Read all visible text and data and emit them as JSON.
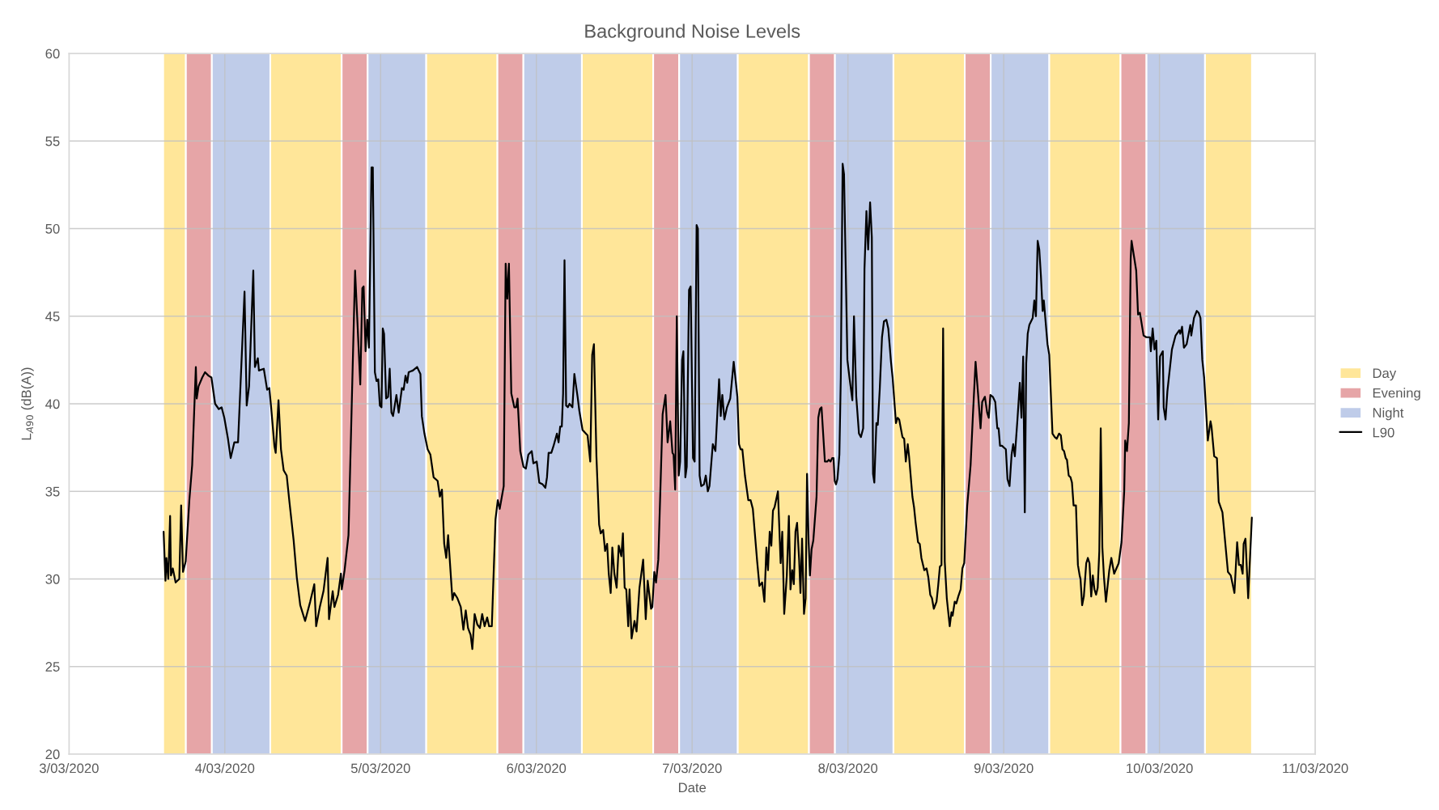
{
  "chart_data": {
    "type": "line",
    "title": "Background Noise Levels",
    "xlabel": "Date",
    "ylabel": "L$_{A90}$ (dB(A))",
    "xlim": [
      "2020-03-03",
      "2020-03-11"
    ],
    "xticks": [
      {
        "value": "2020-03-03",
        "label": "3/03/2020"
      },
      {
        "value": "2020-03-04",
        "label": "4/03/2020"
      },
      {
        "value": "2020-03-05",
        "label": "5/03/2020"
      },
      {
        "value": "2020-03-06",
        "label": "6/03/2020"
      },
      {
        "value": "2020-03-07",
        "label": "7/03/2020"
      },
      {
        "value": "2020-03-08",
        "label": "8/03/2020"
      },
      {
        "value": "2020-03-09",
        "label": "9/03/2020"
      },
      {
        "value": "2020-03-10",
        "label": "10/03/2020"
      },
      {
        "value": "2020-03-11",
        "label": "11/03/2020"
      }
    ],
    "ylim": [
      20,
      60
    ],
    "yticks": [
      20,
      25,
      30,
      35,
      40,
      45,
      50,
      55,
      60
    ],
    "grid": true,
    "legend": "right",
    "series": [
      {
        "name": "Day",
        "type": "area",
        "color": "#ffe699",
        "x": [
          "2020-03-03T14:30",
          "2020-03-03T18:00",
          "2020-03-03T18:00",
          "2020-03-04T07:00",
          "2020-03-04T07:00",
          "2020-03-04T18:00",
          "2020-03-04T18:00",
          "2020-03-05T07:00",
          "2020-03-05T07:00",
          "2020-03-05T18:00",
          "2020-03-05T18:00",
          "2020-03-06T07:00",
          "2020-03-06T07:00",
          "2020-03-06T18:00",
          "2020-03-06T18:00",
          "2020-03-07T07:00",
          "2020-03-07T07:00",
          "2020-03-07T18:00",
          "2020-03-07T18:00",
          "2020-03-08T07:00",
          "2020-03-08T07:00",
          "2020-03-08T18:00",
          "2020-03-08T18:00",
          "2020-03-09T07:00",
          "2020-03-09T07:00",
          "2020-03-09T18:00",
          "2020-03-09T18:00",
          "2020-03-10T07:00",
          "2020-03-10T07:00",
          "2020-03-10T14:15"
        ],
        "values": [
          60,
          60,
          20,
          20,
          60,
          60,
          20,
          20,
          60,
          60,
          20,
          20,
          60,
          60,
          20,
          20,
          60,
          60,
          20,
          20,
          60,
          60,
          20,
          20,
          60,
          60,
          20,
          20,
          60,
          60
        ]
      },
      {
        "name": "Evening",
        "type": "area",
        "color": "#e6a5a7",
        "x": [
          "2020-03-03T18:00",
          "2020-03-03T22:00",
          "2020-03-03T22:00",
          "2020-03-04T18:00",
          "2020-03-04T18:00",
          "2020-03-04T22:00",
          "2020-03-04T22:00",
          "2020-03-05T18:00",
          "2020-03-05T18:00",
          "2020-03-05T22:00",
          "2020-03-05T22:00",
          "2020-03-06T18:00",
          "2020-03-06T18:00",
          "2020-03-06T22:00",
          "2020-03-06T22:00",
          "2020-03-07T18:00",
          "2020-03-07T18:00",
          "2020-03-07T22:00",
          "2020-03-07T22:00",
          "2020-03-08T18:00",
          "2020-03-08T18:00",
          "2020-03-08T22:00",
          "2020-03-08T22:00",
          "2020-03-09T18:00",
          "2020-03-09T18:00",
          "2020-03-09T22:00"
        ],
        "values": [
          60,
          60,
          20,
          20,
          60,
          60,
          20,
          20,
          60,
          60,
          20,
          20,
          60,
          60,
          20,
          20,
          60,
          60,
          20,
          20,
          60,
          60,
          20,
          20,
          60,
          60
        ]
      },
      {
        "name": "Night",
        "type": "area",
        "color": "#bfcce9",
        "x": [
          "2020-03-03T22:00",
          "2020-03-04T07:00",
          "2020-03-04T07:00",
          "2020-03-04T22:00",
          "2020-03-04T22:00",
          "2020-03-05T07:00",
          "2020-03-05T07:00",
          "2020-03-05T22:00",
          "2020-03-05T22:00",
          "2020-03-06T07:00",
          "2020-03-06T07:00",
          "2020-03-06T22:00",
          "2020-03-06T22:00",
          "2020-03-07T07:00",
          "2020-03-07T07:00",
          "2020-03-07T22:00",
          "2020-03-07T22:00",
          "2020-03-08T07:00",
          "2020-03-08T07:00",
          "2020-03-08T22:00",
          "2020-03-08T22:00",
          "2020-03-09T07:00",
          "2020-03-09T07:00",
          "2020-03-09T22:00",
          "2020-03-09T22:00",
          "2020-03-10T07:00"
        ],
        "values": [
          60,
          60,
          20,
          20,
          60,
          60,
          20,
          20,
          60,
          60,
          20,
          20,
          60,
          60,
          20,
          20,
          60,
          60,
          20,
          20,
          60,
          60,
          20,
          20,
          60,
          60
        ]
      },
      {
        "name": "L90",
        "color": "#000000",
        "x": [
          "2020-03-03T14:34",
          "2020-03-03T14:51",
          "2020-03-03T15:00",
          "2020-03-03T15:17",
          "2020-03-03T15:34",
          "2020-03-03T15:42",
          "2020-03-03T15:59",
          "2020-03-03T16:25",
          "2020-03-03T16:59",
          "2020-03-03T17:16",
          "2020-03-03T17:33",
          "2020-03-03T17:58",
          "2020-03-03T18:32",
          "2020-03-03T18:58",
          "2020-03-03T19:32",
          "2020-03-03T19:40",
          "2020-03-03T19:57",
          "2020-03-03T20:31",
          "2020-03-03T20:57",
          "2020-03-03T21:30",
          "2020-03-03T21:56",
          "2020-03-03T22:30",
          "2020-03-03T23:04",
          "2020-03-03T23:30",
          "2020-03-03T23:55",
          "2020-03-04T00:29",
          "2020-03-04T00:54",
          "2020-03-04T01:28",
          "2020-03-04T02:02",
          "2020-03-04T03:02",
          "2020-03-04T03:22",
          "2020-03-04T03:44",
          "2020-03-04T04:23",
          "2020-03-04T04:38",
          "2020-03-04T05:05",
          "2020-03-04T05:15",
          "2020-03-04T06:00",
          "2020-03-04T06:31",
          "2020-03-04T06:51",
          "2020-03-04T07:08",
          "2020-03-04T07:38",
          "2020-03-04T07:50",
          "2020-03-04T08:16",
          "2020-03-04T08:39",
          "2020-03-04T09:04",
          "2020-03-04T09:32",
          "2020-03-04T09:57",
          "2020-03-04T10:36",
          "2020-03-04T11:05",
          "2020-03-04T11:37",
          "2020-03-04T12:22",
          "2020-03-04T13:09",
          "2020-03-04T13:47",
          "2020-03-04T14:04",
          "2020-03-04T14:38",
          "2020-03-04T15:12",
          "2020-03-04T15:50",
          "2020-03-04T16:03",
          "2020-03-04T16:37",
          "2020-03-04T16:53",
          "2020-03-04T17:27",
          "2020-03-04T17:53",
          "2020-03-04T18:01",
          "2020-03-04T18:27",
          "2020-03-04T19:03",
          "2020-03-04T20:04",
          "2020-03-04T20:52",
          "2020-03-04T21:11",
          "2020-03-04T21:23",
          "2020-03-04T21:41",
          "2020-03-04T21:57",
          "2020-03-04T22:12",
          "2020-03-04T22:36",
          "2020-03-04T22:48",
          "2020-03-04T23:07",
          "2020-03-04T23:22",
          "2020-03-04T23:38",
          "2020-03-04T23:53",
          "2020-03-05T00:08",
          "2020-03-05T00:20",
          "2020-03-05T00:32",
          "2020-03-05T00:51",
          "2020-03-05T01:09",
          "2020-03-05T01:24",
          "2020-03-05T01:40",
          "2020-03-05T01:55",
          "2020-03-05T02:26",
          "2020-03-05T02:47",
          "2020-03-05T03:17",
          "2020-03-05T03:33",
          "2020-03-05T03:50",
          "2020-03-05T04:06",
          "2020-03-05T04:19",
          "2020-03-05T04:58",
          "2020-03-05T05:37",
          "2020-03-05T06:08",
          "2020-03-05T06:21",
          "2020-03-05T06:45",
          "2020-03-05T07:15",
          "2020-03-05T07:40",
          "2020-03-05T08:10",
          "2020-03-05T08:47",
          "2020-03-05T09:08",
          "2020-03-05T09:27",
          "2020-03-05T09:48",
          "2020-03-05T10:07",
          "2020-03-05T10:24",
          "2020-03-05T10:37",
          "2020-03-05T11:04",
          "2020-03-05T11:20",
          "2020-03-05T11:50",
          "2020-03-05T12:21",
          "2020-03-05T12:45",
          "2020-03-05T13:07",
          "2020-03-05T13:28",
          "2020-03-05T13:52",
          "2020-03-05T14:08",
          "2020-03-05T14:29",
          "2020-03-05T14:54",
          "2020-03-05T15:18",
          "2020-03-05T15:39",
          "2020-03-05T16:01",
          "2020-03-05T16:25",
          "2020-03-05T16:43",
          "2020-03-05T17:08",
          "2020-03-05T17:42",
          "2020-03-05T18:03",
          "2020-03-05T18:21",
          "2020-03-05T18:58",
          "2020-03-05T19:16",
          "2020-03-05T19:31",
          "2020-03-05T19:46",
          "2020-03-05T20:08",
          "2020-03-05T20:36",
          "2020-03-05T20:53",
          "2020-03-05T21:06",
          "2020-03-05T21:31",
          "2020-03-05T22:01",
          "2020-03-05T22:23",
          "2020-03-05T22:46",
          "2020-03-05T23:17",
          "2020-03-05T23:32",
          "2020-03-06T00:03",
          "2020-03-06T00:27",
          "2020-03-06T00:58",
          "2020-03-06T01:23",
          "2020-03-06T01:38",
          "2020-03-06T01:53",
          "2020-03-06T02:18",
          "2020-03-06T02:39",
          "2020-03-06T03:10",
          "2020-03-06T03:25",
          "2020-03-06T03:40",
          "2020-03-06T03:55",
          "2020-03-06T04:07",
          "2020-03-06T04:20",
          "2020-03-06T04:35",
          "2020-03-06T04:51",
          "2020-03-06T05:06",
          "2020-03-06T05:33",
          "2020-03-06T05:51",
          "2020-03-06T06:21",
          "2020-03-06T06:37",
          "2020-03-06T07:07",
          "2020-03-06T07:23",
          "2020-03-06T07:53",
          "2020-03-06T08:18",
          "2020-03-06T08:36",
          "2020-03-06T08:52",
          "2020-03-06T09:15",
          "2020-03-06T09:40",
          "2020-03-06T09:55",
          "2020-03-06T10:17",
          "2020-03-06T10:35",
          "2020-03-06T10:54",
          "2020-03-06T11:09",
          "2020-03-06T11:27",
          "2020-03-06T11:42",
          "2020-03-06T12:01",
          "2020-03-06T12:22",
          "2020-03-06T12:41",
          "2020-03-06T13:05",
          "2020-03-06T13:20",
          "2020-03-06T13:36",
          "2020-03-06T13:51",
          "2020-03-06T14:09",
          "2020-03-06T14:21",
          "2020-03-06T14:40",
          "2020-03-06T15:07",
          "2020-03-06T15:26",
          "2020-03-06T15:53",
          "2020-03-06T16:27",
          "2020-03-06T16:51",
          "2020-03-06T17:09",
          "2020-03-06T17:40",
          "2020-03-06T17:52",
          "2020-03-06T18:10",
          "2020-03-06T18:26",
          "2020-03-06T18:47",
          "2020-03-06T19:27",
          "2020-03-06T19:54",
          "2020-03-06T20:13",
          "2020-03-06T20:37",
          "2020-03-06T20:58",
          "2020-03-06T21:08",
          "2020-03-06T21:23",
          "2020-03-06T21:38",
          "2020-03-06T21:56",
          "2020-03-06T22:09",
          "2020-03-06T22:27",
          "2020-03-06T22:39",
          "2020-03-06T22:57",
          "2020-03-06T23:10",
          "2020-03-06T23:31",
          "2020-03-06T23:46",
          "2020-03-07T00:08",
          "2020-03-07T00:23",
          "2020-03-07T00:41",
          "2020-03-07T00:53",
          "2020-03-07T01:09",
          "2020-03-07T01:24",
          "2020-03-07T01:49",
          "2020-03-07T02:06",
          "2020-03-07T02:25",
          "2020-03-07T02:40",
          "2020-03-07T03:11",
          "2020-03-07T03:35",
          "2020-03-07T04:09",
          "2020-03-07T04:24",
          "2020-03-07T04:39",
          "2020-03-07T04:58",
          "2020-03-07T05:22",
          "2020-03-07T05:52",
          "2020-03-07T06:24",
          "2020-03-07T06:58",
          "2020-03-07T07:13",
          "2020-03-07T07:28",
          "2020-03-07T07:44",
          "2020-03-07T08:08",
          "2020-03-07T08:39",
          "2020-03-07T09:00",
          "2020-03-07T09:21",
          "2020-03-07T10:01",
          "2020-03-07T10:22",
          "2020-03-07T10:47",
          "2020-03-07T11:08",
          "2020-03-07T11:26",
          "2020-03-07T11:41",
          "2020-03-07T11:57",
          "2020-03-07T12:12",
          "2020-03-07T12:27",
          "2020-03-07T12:42",
          "2020-03-07T13:13",
          "2020-03-07T13:38",
          "2020-03-07T13:53",
          "2020-03-07T14:11",
          "2020-03-07T14:35",
          "2020-03-07T14:54",
          "2020-03-07T15:09",
          "2020-03-07T15:25",
          "2020-03-07T15:40",
          "2020-03-07T15:55",
          "2020-03-07T16:10",
          "2020-03-07T16:29",
          "2020-03-07T16:41",
          "2020-03-07T16:56",
          "2020-03-07T17:14",
          "2020-03-07T17:29",
          "2020-03-07T17:42",
          "2020-03-07T17:57",
          "2020-03-07T18:09",
          "2020-03-07T18:24",
          "2020-03-07T18:40",
          "2020-03-07T19:10",
          "2020-03-07T19:26",
          "2020-03-07T19:41",
          "2020-03-07T19:56",
          "2020-03-07T20:27",
          "2020-03-07T20:48",
          "2020-03-07T21:03",
          "2020-03-07T21:19",
          "2020-03-07T21:34",
          "2020-03-07T21:47",
          "2020-03-07T21:58",
          "2020-03-07T22:10",
          "2020-03-07T22:23",
          "2020-03-07T22:41",
          "2020-03-07T22:54",
          "2020-03-07T23:11",
          "2020-03-07T23:24",
          "2020-03-07T23:55",
          "2020-03-08T00:16",
          "2020-03-08T00:41",
          "2020-03-08T00:56",
          "2020-03-08T01:17",
          "2020-03-08T01:42",
          "2020-03-08T02:00",
          "2020-03-08T02:21",
          "2020-03-08T02:33",
          "2020-03-08T02:51",
          "2020-03-08T03:07",
          "2020-03-08T03:25",
          "2020-03-08T03:41",
          "2020-03-08T03:52",
          "2020-03-08T04:04",
          "2020-03-08T04:23",
          "2020-03-08T04:36",
          "2020-03-08T04:54",
          "2020-03-08T05:15",
          "2020-03-08T05:33",
          "2020-03-08T05:55",
          "2020-03-08T06:13",
          "2020-03-08T06:25",
          "2020-03-08T06:38",
          "2020-03-08T06:53",
          "2020-03-08T07:24",
          "2020-03-08T07:39",
          "2020-03-08T07:54",
          "2020-03-08T08:24",
          "2020-03-08T08:40",
          "2020-03-08T08:55",
          "2020-03-08T09:13",
          "2020-03-08T09:25",
          "2020-03-08T09:56",
          "2020-03-08T10:11",
          "2020-03-08T10:26",
          "2020-03-08T10:48",
          "2020-03-08T11:04",
          "2020-03-08T11:19",
          "2020-03-08T11:46",
          "2020-03-08T12:07",
          "2020-03-08T12:23",
          "2020-03-08T12:41",
          "2020-03-08T12:57",
          "2020-03-08T13:14",
          "2020-03-08T13:39",
          "2020-03-08T13:54",
          "2020-03-08T14:10",
          "2020-03-08T14:25",
          "2020-03-08T14:40",
          "2020-03-08T14:55",
          "2020-03-08T15:14",
          "2020-03-08T15:41",
          "2020-03-08T15:57",
          "2020-03-08T16:08",
          "2020-03-08T16:27",
          "2020-03-08T16:42",
          "2020-03-08T17:00",
          "2020-03-08T17:22",
          "2020-03-08T17:38",
          "2020-03-08T17:55",
          "2020-03-08T18:23",
          "2020-03-08T18:54",
          "2020-03-08T19:15",
          "2020-03-08T19:40",
          "2020-03-08T20:05",
          "2020-03-08T20:26",
          "2020-03-08T20:41",
          "2020-03-08T21:06",
          "2020-03-08T21:27",
          "2020-03-08T21:42",
          "2020-03-08T21:57",
          "2020-03-08T22:19",
          "2020-03-08T22:42",
          "2020-03-08T23:01",
          "2020-03-08T23:13",
          "2020-03-08T23:26",
          "2020-03-08T23:44",
          "2020-03-09T00:20",
          "2020-03-09T00:35",
          "2020-03-09T00:54",
          "2020-03-09T01:13",
          "2020-03-09T01:28",
          "2020-03-09T01:43",
          "2020-03-09T02:07",
          "2020-03-09T02:29",
          "2020-03-09T02:44",
          "2020-03-09T03:00",
          "2020-03-09T03:15",
          "2020-03-09T03:28",
          "2020-03-09T03:42",
          "2020-03-09T03:57",
          "2020-03-09T04:28",
          "2020-03-09T04:43",
          "2020-03-09T04:58",
          "2020-03-09T05:14",
          "2020-03-09T05:29",
          "2020-03-09T05:44",
          "2020-03-09T06:00",
          "2020-03-09T06:11",
          "2020-03-09T06:45",
          "2020-03-09T07:01",
          "2020-03-09T07:31",
          "2020-03-09T07:52",
          "2020-03-09T08:10",
          "2020-03-09T08:32",
          "2020-03-09T08:48",
          "2020-03-09T09:03",
          "2020-03-09T09:18",
          "2020-03-09T09:33",
          "2020-03-09T09:45",
          "2020-03-09T10:01",
          "2020-03-09T10:18",
          "2020-03-09T10:31",
          "2020-03-09T10:46",
          "2020-03-09T11:08",
          "2020-03-09T11:26",
          "2020-03-09T11:42",
          "2020-03-09T11:50",
          "2020-03-09T12:05",
          "2020-03-09T12:21",
          "2020-03-09T12:43",
          "2020-03-09T12:58",
          "2020-03-09T13:13",
          "2020-03-09T13:29",
          "2020-03-09T13:44",
          "2020-03-09T13:59",
          "2020-03-09T14:14",
          "2020-03-09T14:29",
          "2020-03-09T14:44",
          "2020-03-09T14:57",
          "2020-03-09T15:12",
          "2020-03-09T15:27",
          "2020-03-09T15:45",
          "2020-03-09T16:16",
          "2020-03-09T16:35",
          "2020-03-09T17:01",
          "2020-03-09T17:43",
          "2020-03-09T18:09",
          "2020-03-09T18:34",
          "2020-03-09T18:43",
          "2020-03-09T19:00",
          "2020-03-09T19:17",
          "2020-03-09T19:34",
          "2020-03-09T19:42",
          "2020-03-09T20:25",
          "2020-03-09T20:42",
          "2020-03-09T20:59",
          "2020-03-09T21:33",
          "2020-03-09T21:58",
          "2020-03-09T22:32",
          "2020-03-09T22:40",
          "2020-03-09T22:57",
          "2020-03-09T23:14",
          "2020-03-09T23:31",
          "2020-03-09T23:48",
          "2020-03-10T00:05",
          "2020-03-10T00:31",
          "2020-03-10T00:39",
          "2020-03-10T00:56",
          "2020-03-10T01:13",
          "2020-03-10T01:55",
          "2020-03-10T02:29",
          "2020-03-10T03:03",
          "2020-03-10T03:12",
          "2020-03-10T03:29",
          "2020-03-10T03:46",
          "2020-03-10T04:11",
          "2020-03-10T04:45",
          "2020-03-10T04:54",
          "2020-03-10T05:19",
          "2020-03-10T05:45",
          "2020-03-10T06:02",
          "2020-03-10T06:19",
          "2020-03-10T06:36",
          "2020-03-10T06:53",
          "2020-03-10T07:27",
          "2020-03-10T07:52",
          "2020-03-10T08:01",
          "2020-03-10T08:26",
          "2020-03-10T08:51",
          "2020-03-10T09:08",
          "2020-03-10T09:42",
          "2020-03-10T10:33",
          "2020-03-10T10:59",
          "2020-03-10T11:33",
          "2020-03-10T11:58",
          "2020-03-10T12:15",
          "2020-03-10T12:32",
          "2020-03-10T12:49",
          "2020-03-10T12:58",
          "2020-03-10T13:15",
          "2020-03-10T13:40",
          "2020-03-10T14:14"
        ],
        "values": [
          32.7,
          29.9,
          31.2,
          30.0,
          33.6,
          30.2,
          30.6,
          29.8,
          30.0,
          34.2,
          30.4,
          31.0,
          34.5,
          36.5,
          42.1,
          40.3,
          41.0,
          41.5,
          41.8,
          41.6,
          41.5,
          40.0,
          39.7,
          39.8,
          39.2,
          38.0,
          36.9,
          37.8,
          37.8,
          46.4,
          39.9,
          41.0,
          47.6,
          42.1,
          42.6,
          41.9,
          42.0,
          40.8,
          40.9,
          39.8,
          37.6,
          37.2,
          40.2,
          37.4,
          36.2,
          35.9,
          34.4,
          32.2,
          30.1,
          28.5,
          27.6,
          28.7,
          29.7,
          27.3,
          28.4,
          29.3,
          31.2,
          27.7,
          29.3,
          28.4,
          29.1,
          30.3,
          29.4,
          30.5,
          32.5,
          47.6,
          41.1,
          46.6,
          46.7,
          43.0,
          44.8,
          43.2,
          53.5,
          53.5,
          41.8,
          41.3,
          41.4,
          39.9,
          39.8,
          44.3,
          44.0,
          40.3,
          40.4,
          42.0,
          39.5,
          39.3,
          40.5,
          39.5,
          40.9,
          40.8,
          41.6,
          41.2,
          41.8,
          41.9,
          42.1,
          41.7,
          39.3,
          38.3,
          37.4,
          37.1,
          35.8,
          35.6,
          34.7,
          35.1,
          32.0,
          31.2,
          32.5,
          31.3,
          28.8,
          29.2,
          28.9,
          28.4,
          27.1,
          28.2,
          27.2,
          26.8,
          26.0,
          28.0,
          27.4,
          27.2,
          28.0,
          27.3,
          27.8,
          27.3,
          27.3,
          33.4,
          34.5,
          34.0,
          35.3,
          48.0,
          46.0,
          48.0,
          40.6,
          39.8,
          39.8,
          40.3,
          37.3,
          36.4,
          36.3,
          37.1,
          37.3,
          36.6,
          36.7,
          35.5,
          35.4,
          35.2,
          35.8,
          37.2,
          37.2,
          37.6,
          38.3,
          37.8,
          38.7,
          38.7,
          40.6,
          48.2,
          39.9,
          39.8,
          40.0,
          39.8,
          41.7,
          40.4,
          39.6,
          38.5,
          38.4,
          38.2,
          36.7,
          42.8,
          43.4,
          37.0,
          33.1,
          32.6,
          32.8,
          31.6,
          32.0,
          30.3,
          29.2,
          31.8,
          30.3,
          29.5,
          31.9,
          31.3,
          32.6,
          29.5,
          29.4,
          27.3,
          29.4,
          26.6,
          27.6,
          27.0,
          29.5,
          31.1,
          27.7,
          29.9,
          28.3,
          28.4,
          30.4,
          29.8,
          31.1,
          39.4,
          40.5,
          37.8,
          39.0,
          37.2,
          37.1,
          35.1,
          45.0,
          35.9,
          36.7,
          42.5,
          43.0,
          35.8,
          36.4,
          46.5,
          46.7,
          36.9,
          36.7,
          50.2,
          50.0,
          35.9,
          35.3,
          35.4,
          35.9,
          35.0,
          35.3,
          37.7,
          37.3,
          41.4,
          39.3,
          40.5,
          39.1,
          39.8,
          40.3,
          42.4,
          40.4,
          37.7,
          37.4,
          37.4,
          35.9,
          34.5,
          34.5,
          34.0,
          31.0,
          29.6,
          29.8,
          28.7,
          31.8,
          30.5,
          32.7,
          31.9,
          33.9,
          34.1,
          35.0,
          30.9,
          32.7,
          28.0,
          30.2,
          33.6,
          29.4,
          30.5,
          29.7,
          32.7,
          33.2,
          31.1,
          29.2,
          32.3,
          28.0,
          28.9,
          36.0,
          32.1,
          30.2,
          31.7,
          32.2,
          34.7,
          39.2,
          39.7,
          39.8,
          36.7,
          36.7,
          36.8,
          36.7,
          36.9,
          36.9,
          35.6,
          35.4,
          35.7,
          37.1,
          41.5,
          53.7,
          53.1,
          42.5,
          41.4,
          40.2,
          45.0,
          40.4,
          38.3,
          38.1,
          38.6,
          47.7,
          51.0,
          48.8,
          51.5,
          49.5,
          36.0,
          35.5,
          38.9,
          38.8,
          40.8,
          43.8,
          44.7,
          44.8,
          44.3,
          43.4,
          42.4,
          41.5,
          38.9,
          39.2,
          39.1,
          38.1,
          38.0,
          36.7,
          37.7,
          37.0,
          34.7,
          34.1,
          33.2,
          32.1,
          32.0,
          31.2,
          30.5,
          30.6,
          30.1,
          29.1,
          28.9,
          28.3,
          28.7,
          29.6,
          30.7,
          30.8,
          44.3,
          31.0,
          28.9,
          27.3,
          28.1,
          27.9,
          28.7,
          28.6,
          29.0,
          29.4,
          30.6,
          30.9,
          34.2,
          36.5,
          39.3,
          42.4,
          40.4,
          38.6,
          40.1,
          40.4,
          39.5,
          39.2,
          40.5,
          40.4,
          40.1,
          38.6,
          38.6,
          37.6,
          37.6,
          37.4,
          35.7,
          35.3,
          37.1,
          37.7,
          37.0,
          39.1,
          41.2,
          39.2,
          42.7,
          33.8,
          42.3,
          44.0,
          44.5,
          44.9,
          45.9,
          45.0,
          49.3,
          48.8,
          47.3,
          45.3,
          45.9,
          43.4,
          42.8,
          38.3,
          38.1,
          38.0,
          38.3,
          38.2,
          37.4,
          37.3,
          36.9,
          36.8,
          35.9,
          35.8,
          35.5,
          34.2,
          34.2,
          30.8,
          30.2,
          30.0,
          28.5,
          29.0,
          30.9,
          31.2,
          30.9,
          29.0,
          30.2,
          29.4,
          29.1,
          29.5,
          31.6,
          38.6,
          31.8,
          30.1,
          28.7,
          30.5,
          31.2,
          30.3,
          30.9,
          32.1,
          35.0,
          37.9,
          37.3,
          38.9,
          48.3,
          49.3,
          47.6,
          45.1,
          45.2,
          43.9,
          43.8,
          43.8,
          43.0,
          44.3,
          43.1,
          43.6,
          39.1,
          42.7,
          43.0,
          39.8,
          39.1,
          40.7,
          43.1,
          43.9,
          44.2,
          44.0,
          44.4,
          43.2,
          43.4,
          44.5,
          43.9,
          44.9,
          45.3,
          45.2,
          44.9,
          42.5,
          41.5,
          37.9,
          39.0,
          38.7,
          37.0,
          36.9,
          34.4,
          33.8,
          30.4,
          30.2,
          29.2,
          32.1,
          30.8,
          30.8,
          30.3,
          32.0,
          32.3,
          28.9,
          33.5
        ]
      }
    ]
  }
}
